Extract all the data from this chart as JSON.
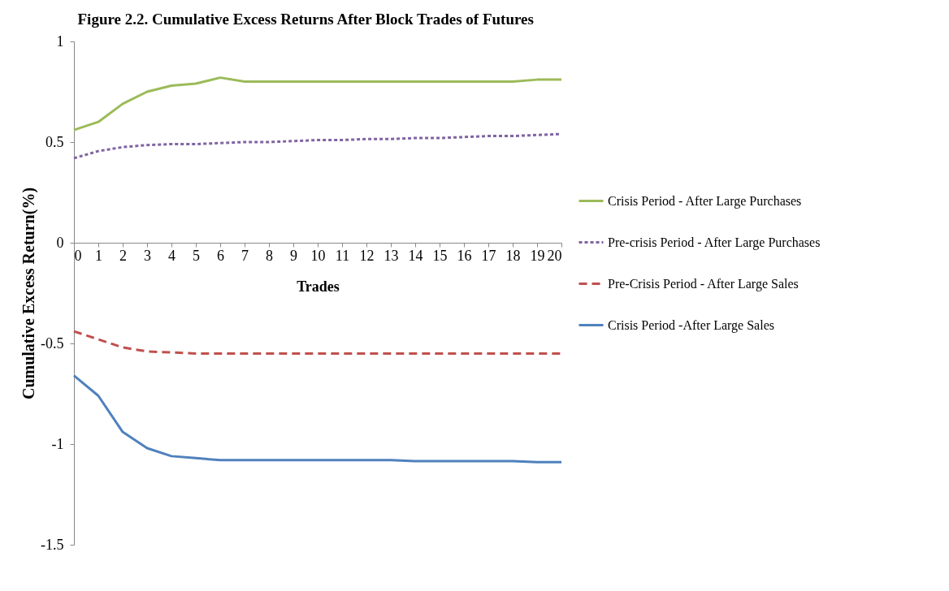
{
  "chart_data": {
    "type": "line",
    "title": "Figure 2.2. Cumulative Excess Returns After Block Trades of Futures",
    "xlabel": "Trades",
    "ylabel": "Cumulative Excess Return(%)",
    "x": [
      0,
      1,
      2,
      3,
      4,
      5,
      6,
      7,
      8,
      9,
      10,
      11,
      12,
      13,
      14,
      15,
      16,
      17,
      18,
      19,
      20
    ],
    "xlim": [
      0,
      20
    ],
    "xticks": [
      0,
      1,
      2,
      3,
      4,
      5,
      6,
      7,
      8,
      9,
      10,
      11,
      12,
      13,
      14,
      15,
      16,
      17,
      18,
      19,
      20
    ],
    "ylim": [
      -1.5,
      1
    ],
    "yticks": [
      -1.5,
      -1,
      -0.5,
      0,
      0.5,
      1
    ],
    "grid": false,
    "legend": "right",
    "marker": "none",
    "series": [
      {
        "name": "Crisis Period - After Large Purchases",
        "color": "#9bbb59",
        "line_style": "solid",
        "values": [
          0.56,
          0.6,
          0.69,
          0.75,
          0.78,
          0.79,
          0.82,
          0.8,
          0.8,
          0.8,
          0.8,
          0.8,
          0.8,
          0.8,
          0.8,
          0.8,
          0.8,
          0.8,
          0.8,
          0.81,
          0.81
        ]
      },
      {
        "name": "Pre-crisis Period - After Large Purchases",
        "color": "#8064a2",
        "line_style": "dotted",
        "values": [
          0.42,
          0.455,
          0.475,
          0.485,
          0.49,
          0.49,
          0.495,
          0.5,
          0.5,
          0.505,
          0.51,
          0.51,
          0.515,
          0.515,
          0.52,
          0.52,
          0.525,
          0.53,
          0.53,
          0.535,
          0.54
        ]
      },
      {
        "name": "Pre-Crisis Period - After Large Sales",
        "color": "#c0504d",
        "line_style": "dashed",
        "values": [
          -0.44,
          -0.48,
          -0.52,
          -0.54,
          -0.545,
          -0.55,
          -0.55,
          -0.55,
          -0.55,
          -0.55,
          -0.55,
          -0.55,
          -0.55,
          -0.55,
          -0.55,
          -0.55,
          -0.55,
          -0.55,
          -0.55,
          -0.55,
          -0.55
        ]
      },
      {
        "name": "Crisis Period -After Large Sales",
        "color": "#4f81bd",
        "line_style": "solid",
        "values": [
          -0.66,
          -0.76,
          -0.94,
          -1.02,
          -1.06,
          -1.07,
          -1.08,
          -1.08,
          -1.08,
          -1.08,
          -1.08,
          -1.08,
          -1.08,
          -1.08,
          -1.085,
          -1.085,
          -1.085,
          -1.085,
          -1.085,
          -1.09,
          -1.09
        ]
      }
    ]
  }
}
